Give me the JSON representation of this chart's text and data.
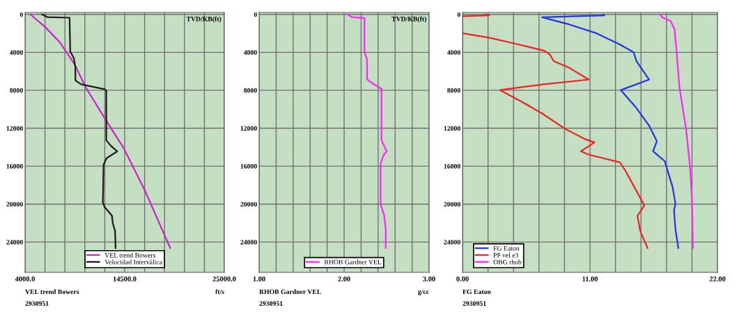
{
  "chart_data": [
    {
      "type": "line",
      "xlabel": "VEL trend Bowers",
      "ylabel": "TVD/KB(ft)",
      "annotations": [
        "ft/s",
        "2930951"
      ],
      "xlim": [
        4000,
        25000
      ],
      "xticks": [
        {
          "value": 4000,
          "label": "4000.0"
        },
        {
          "value": 6100,
          "label": null
        },
        {
          "value": 8200,
          "label": null
        },
        {
          "value": 10300,
          "label": null
        },
        {
          "value": 12400,
          "label": null
        },
        {
          "value": 14500,
          "label": "14500.0"
        },
        {
          "value": 16600,
          "label": null
        },
        {
          "value": 18700,
          "label": null
        },
        {
          "value": 20800,
          "label": null
        },
        {
          "value": 22900,
          "label": null
        },
        {
          "value": 25000,
          "label": "25000.0"
        }
      ],
      "ylim": [
        27200,
        -200
      ],
      "yticks": [
        0,
        4000,
        8000,
        12000,
        16000,
        20000,
        24000
      ],
      "grid": true,
      "legend": "bottom",
      "series": [
        {
          "name": "VEL trend Bowers",
          "color": "#cc22cc",
          "x": [
            4560,
            6120,
            7690,
            9250,
            10370,
            12600,
            14390,
            16620,
            19300
          ],
          "values": [
            0,
            1330,
            2970,
            5310,
            7660,
            11280,
            14090,
            18540,
            24630
          ]
        },
        {
          "name": "Velocidad Interválica",
          "color": "#1a1a1a",
          "x": [
            5790,
            6340,
            8690,
            8760,
            9140,
            9300,
            9300,
            9920,
            12380,
            12560,
            12560,
            13050,
            13720,
            12600,
            12270,
            12200,
            12380,
            13160,
            13230,
            13490,
            13540
          ],
          "values": [
            0,
            280,
            350,
            3900,
            4610,
            5550,
            6950,
            7370,
            7890,
            8010,
            13270,
            13860,
            14440,
            15150,
            15850,
            19830,
            20300,
            21230,
            21940,
            22870,
            24630
          ]
        }
      ]
    },
    {
      "type": "line",
      "xlabel": "RHOB Gardner VEL",
      "ylabel": "TVD/KB(ft)",
      "annotations": [
        "g/cc",
        "2930951"
      ],
      "xlim": [
        1.0,
        3.0
      ],
      "xticks": [
        {
          "value": 1.0,
          "label": "1.00"
        },
        {
          "value": 1.2,
          "label": null
        },
        {
          "value": 1.4,
          "label": null
        },
        {
          "value": 1.6,
          "label": null
        },
        {
          "value": 1.8,
          "label": null
        },
        {
          "value": 2.0,
          "label": "2.00"
        },
        {
          "value": 2.2,
          "label": null
        },
        {
          "value": 2.4,
          "label": null
        },
        {
          "value": 2.6,
          "label": null
        },
        {
          "value": 2.8,
          "label": null
        },
        {
          "value": 3.0,
          "label": "3.00"
        }
      ],
      "ylim": [
        27200,
        -200
      ],
      "yticks": [
        0,
        4000,
        8000,
        12000,
        16000,
        20000,
        24000
      ],
      "grid": true,
      "legend": "bottom",
      "series": [
        {
          "name": "RHOB Gardner VEL",
          "color": "#ff22ff",
          "x": [
            2.04,
            2.09,
            2.24,
            2.24,
            2.27,
            2.27,
            2.35,
            2.44,
            2.44,
            2.5,
            2.46,
            2.43,
            2.43,
            2.47,
            2.49,
            2.49
          ],
          "values": [
            0,
            280,
            400,
            4030,
            4730,
            6840,
            7370,
            7840,
            13270,
            14440,
            14910,
            15730,
            20060,
            21120,
            22640,
            24630
          ]
        }
      ]
    },
    {
      "type": "line",
      "xlabel": "FG Eaton",
      "annotations": [
        "2930951"
      ],
      "xlim": [
        0,
        22
      ],
      "xticks": [
        {
          "value": 0,
          "label": "0.00"
        },
        {
          "value": 2.2,
          "label": null
        },
        {
          "value": 4.4,
          "label": null
        },
        {
          "value": 6.6,
          "label": null
        },
        {
          "value": 8.8,
          "label": null
        },
        {
          "value": 11,
          "label": "11.00"
        },
        {
          "value": 13.2,
          "label": null
        },
        {
          "value": 15.4,
          "label": null
        },
        {
          "value": 17.6,
          "label": null
        },
        {
          "value": 19.8,
          "label": null
        },
        {
          "value": 22,
          "label": "22.00"
        }
      ],
      "ylim": [
        27200,
        -200
      ],
      "yticks": [
        0,
        4000,
        8000,
        12000,
        16000,
        20000,
        24000
      ],
      "grid": true,
      "legend": "bottom left",
      "series": [
        {
          "name": "FG Eaton",
          "color": "#2233ee",
          "x": [
            12.15,
            12.24,
            6.86,
            9.21,
            11.56,
            13.58,
            14.76,
            15.01,
            16.1,
            13.66,
            14.92,
            16.1,
            16.77,
            16.44,
            17.45,
            18.12,
            18.37,
            18.25,
            18.37,
            18.62
          ],
          "values": [
            0,
            100,
            300,
            1060,
            1990,
            3170,
            3990,
            4930,
            6870,
            7980,
            9740,
            11730,
            13370,
            14430,
            15480,
            18180,
            19940,
            20640,
            22640,
            24630
          ]
        },
        {
          "name": "PP vel e3",
          "color": "#ee2222",
          "x": [
            0,
            2.3,
            1.98,
            null,
            0,
            2.32,
            4.84,
            7.03,
            7.53,
            7.87,
            9.21,
            10.89,
            6.86,
            3.24,
            4.84,
            6.86,
            8.87,
            10.55,
            11.39,
            10.22,
            10.89,
            13.58,
            14.08,
            15.6,
            15.68,
            15.09,
            15.34,
            15.97
          ],
          "values": [
            200,
            100,
            0,
            null,
            1990,
            2460,
            3170,
            3820,
            4220,
            4930,
            5630,
            6870,
            7390,
            7980,
            9030,
            10440,
            12080,
            13140,
            13490,
            14430,
            14780,
            15600,
            16540,
            19940,
            20180,
            21230,
            22870,
            24630
          ]
        },
        {
          "name": "OBG rhob",
          "color": "#ff22ff",
          "x": [
            17.03,
            17.28,
            17.95,
            18.29,
            18.45,
            18.71,
            19.29,
            19.63,
            19.8,
            19.88
          ],
          "values": [
            0,
            350,
            700,
            1520,
            3640,
            7620,
            12080,
            16070,
            19590,
            24630
          ]
        }
      ]
    }
  ]
}
